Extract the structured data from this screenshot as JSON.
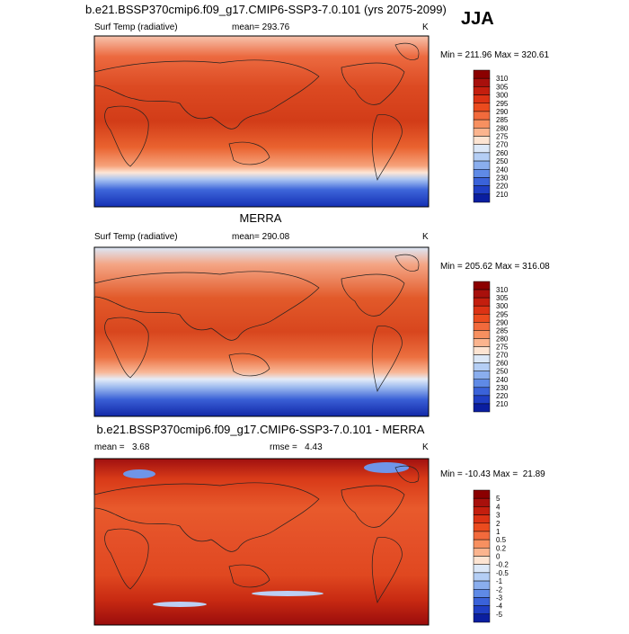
{
  "season": "JJA",
  "panels": [
    {
      "title": "b.e21.BSSP370cmip6.f09_g17.CMIP6-SSP3-7.0.101 (yrs 2075-2099)",
      "variable": "Surf Temp (radiative)",
      "stat": "mean= 293.76",
      "units": "K",
      "range": "Min = 211.96 Max = 320.61",
      "colorbar": [
        "310",
        "305",
        "300",
        "295",
        "290",
        "285",
        "280",
        "275",
        "270",
        "260",
        "250",
        "240",
        "230",
        "220",
        "210"
      ]
    },
    {
      "title": "MERRA",
      "variable": "Surf Temp (radiative)",
      "stat": "mean= 290.08",
      "units": "K",
      "range": "Min = 205.62 Max = 316.08",
      "colorbar": [
        "310",
        "305",
        "300",
        "295",
        "290",
        "285",
        "280",
        "275",
        "270",
        "260",
        "250",
        "240",
        "230",
        "220",
        "210"
      ]
    },
    {
      "title": "b.e21.BSSP370cmip6.f09_g17.CMIP6-SSP3-7.0.101 - MERRA",
      "stat": "mean =   3.68",
      "stat2": "rmse =   4.43",
      "units": "K",
      "range": "Min = -10.43 Max =  21.89",
      "colorbar": [
        "5",
        "4",
        "3",
        "2",
        "1",
        "0.5",
        "0.2",
        "0",
        "-0.2",
        "-0.5",
        "-1",
        "-2",
        "-3",
        "-4",
        "-5"
      ]
    }
  ]
}
